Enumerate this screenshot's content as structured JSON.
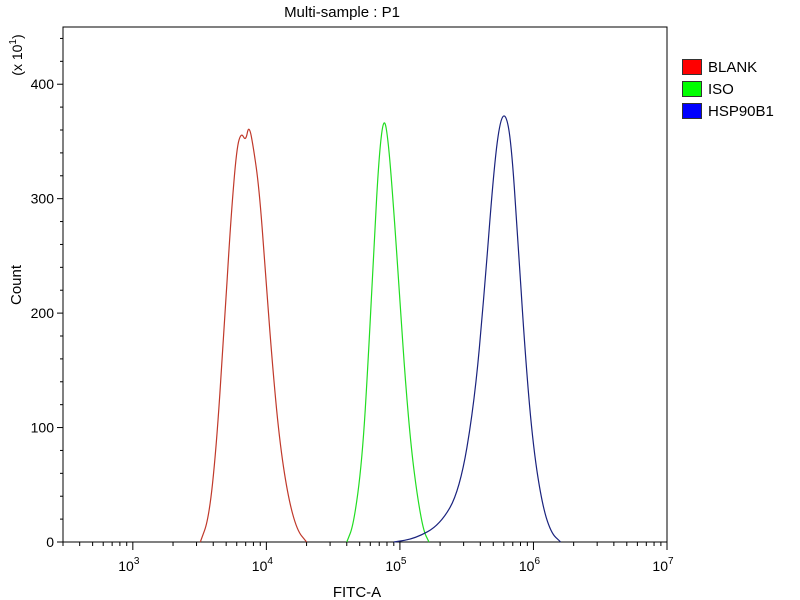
{
  "chart_data": {
    "type": "line",
    "title": "Multi-sample : P1",
    "xlabel": "FITC-A",
    "ylabel": "Count",
    "y_multiplier_label": "(x 10",
    "y_multiplier_exp": "1",
    "x_scale": "log",
    "xlim": [
      300,
      10000000
    ],
    "ylim": [
      0,
      450
    ],
    "x_ticks": [
      {
        "base": "10",
        "exp": "3",
        "value": 1000
      },
      {
        "base": "10",
        "exp": "4",
        "value": 10000
      },
      {
        "base": "10",
        "exp": "5",
        "value": 100000
      },
      {
        "base": "10",
        "exp": "6",
        "value": 1000000
      },
      {
        "base": "10",
        "exp": "7",
        "value": 10000000
      }
    ],
    "y_ticks": [
      "0",
      "100",
      "200",
      "300",
      "400"
    ],
    "legend_position": "top-right",
    "series": [
      {
        "name": "BLANK",
        "color": "#c0392b",
        "swatch": "#ff0000",
        "points": [
          [
            3200,
            0
          ],
          [
            3700,
            20
          ],
          [
            4200,
            80
          ],
          [
            4800,
            180
          ],
          [
            5400,
            280
          ],
          [
            6000,
            345
          ],
          [
            6500,
            358
          ],
          [
            7000,
            350
          ],
          [
            7400,
            365
          ],
          [
            8000,
            345
          ],
          [
            8800,
            310
          ],
          [
            9800,
            240
          ],
          [
            11000,
            160
          ],
          [
            12500,
            90
          ],
          [
            14500,
            40
          ],
          [
            17000,
            10
          ],
          [
            20000,
            0
          ]
        ]
      },
      {
        "name": "ISO",
        "color": "#22dd22",
        "swatch": "#00ff00",
        "points": [
          [
            40000,
            0
          ],
          [
            45000,
            15
          ],
          [
            52000,
            70
          ],
          [
            58000,
            160
          ],
          [
            64000,
            260
          ],
          [
            70000,
            340
          ],
          [
            76000,
            373
          ],
          [
            82000,
            350
          ],
          [
            90000,
            290
          ],
          [
            100000,
            210
          ],
          [
            110000,
            140
          ],
          [
            122000,
            80
          ],
          [
            135000,
            40
          ],
          [
            150000,
            10
          ],
          [
            165000,
            0
          ]
        ]
      },
      {
        "name": "HSP90B1",
        "color": "#1a237e",
        "swatch": "#0000ff",
        "points": [
          [
            90000,
            0
          ],
          [
            130000,
            3
          ],
          [
            200000,
            15
          ],
          [
            280000,
            45
          ],
          [
            360000,
            120
          ],
          [
            430000,
            220
          ],
          [
            500000,
            320
          ],
          [
            560000,
            368
          ],
          [
            620000,
            375
          ],
          [
            680000,
            350
          ],
          [
            760000,
            270
          ],
          [
            860000,
            170
          ],
          [
            980000,
            90
          ],
          [
            1150000,
            35
          ],
          [
            1350000,
            8
          ],
          [
            1600000,
            0
          ]
        ]
      }
    ]
  }
}
